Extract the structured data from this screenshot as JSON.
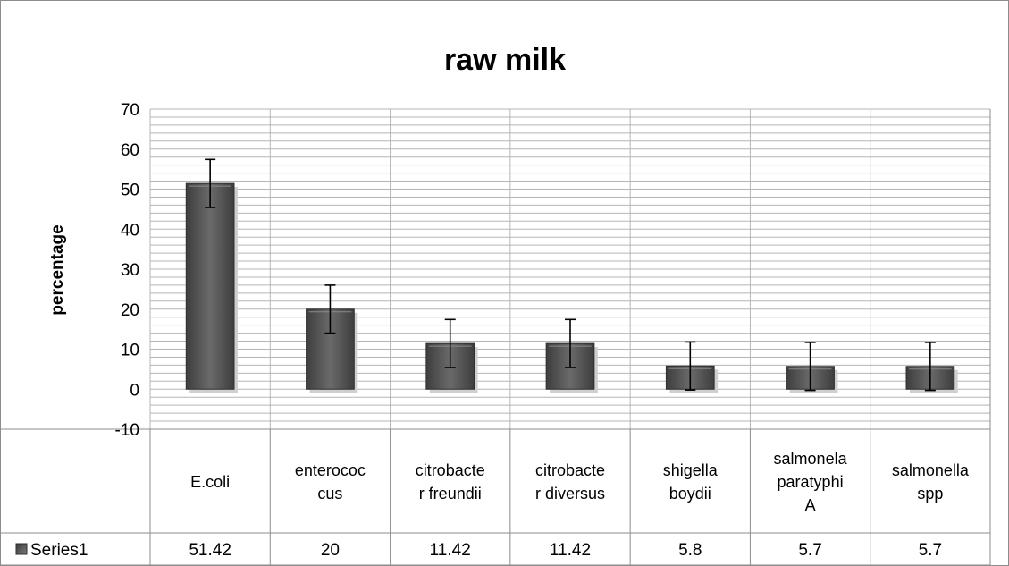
{
  "chart_data": {
    "type": "bar",
    "title": "raw milk",
    "ylabel": "percentage",
    "xlabel": "",
    "ylim": [
      -10,
      70
    ],
    "y_ticks": [
      -10,
      0,
      10,
      20,
      30,
      40,
      50,
      60,
      70
    ],
    "minor_grid_step": 2,
    "grid": true,
    "categories": [
      [
        "E.coli"
      ],
      [
        "enterococ",
        "cus"
      ],
      [
        "citrobacte",
        "r freundii"
      ],
      [
        "citrobacte",
        "r diversus"
      ],
      [
        "shigella",
        "boydii"
      ],
      [
        "salmonela",
        "paratyphi",
        "A"
      ],
      [
        "salmonella",
        "spp"
      ]
    ],
    "series": [
      {
        "name": "Series1",
        "values": [
          51.42,
          20,
          11.42,
          11.42,
          5.8,
          5.7,
          5.7
        ],
        "value_labels": [
          "51.42",
          "20",
          "11.42",
          "11.42",
          "5.8",
          "5.7",
          "5.7"
        ],
        "error_bars": [
          6,
          6,
          6,
          6,
          6,
          6,
          6
        ],
        "color": "#595959"
      }
    ],
    "legend": "data-table",
    "data_table": true
  }
}
